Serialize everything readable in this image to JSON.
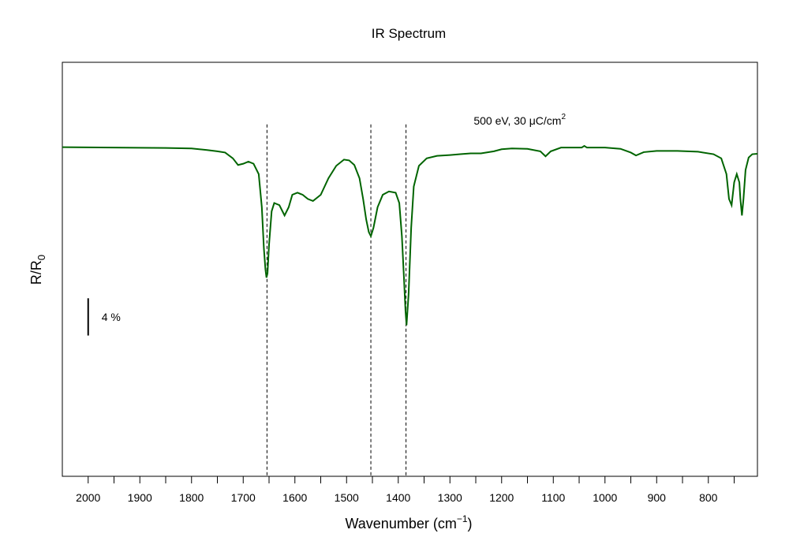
{
  "chart_data": {
    "type": "line",
    "title": "IR Spectrum",
    "xlabel": "Wavenumber  (cm",
    "xlabel_sup": "−1",
    "xlabel_close": ")",
    "ylabel_main": "R/R",
    "ylabel_sub": "0",
    "xlim": [
      2050,
      705
    ],
    "ylim": [
      0,
      100
    ],
    "x_ticks": [
      2000,
      1950,
      1900,
      1850,
      1800,
      1750,
      1700,
      1650,
      1600,
      1550,
      1500,
      1450,
      1400,
      1350,
      1300,
      1250,
      1200,
      1150,
      1100,
      1050,
      1000,
      950,
      900,
      850,
      800,
      750
    ],
    "x_tick_labels": [
      "2000",
      "1900",
      "1800",
      "1700",
      "1600",
      "1500",
      "1400",
      "1300",
      "1200",
      "1100",
      "1000",
      "900",
      "800"
    ],
    "grid": false,
    "line_color": "#006400",
    "reference_lines": [
      1654,
      1453,
      1385
    ],
    "reference_line_top": 85,
    "annotation": {
      "text_main": "500 eV,  30 ",
      "text_mu": "μ",
      "text_unit": "C/cm",
      "text_sup": "2",
      "x": 1165,
      "y": 85
    },
    "scale_bar": {
      "label": "4 %",
      "x": 2000,
      "y_top": 43,
      "y_bottom": 34
    },
    "series": [
      {
        "x": [
          2050,
          1950,
          1850,
          1800,
          1770,
          1750,
          1735,
          1720,
          1710,
          1700,
          1690,
          1680,
          1670,
          1664,
          1660,
          1657,
          1655,
          1653,
          1650,
          1645,
          1640,
          1630,
          1620,
          1612,
          1605,
          1595,
          1585,
          1575,
          1565,
          1550,
          1535,
          1520,
          1505,
          1495,
          1485,
          1475,
          1468,
          1462,
          1457,
          1453,
          1448,
          1440,
          1430,
          1418,
          1405,
          1398,
          1393,
          1389,
          1386,
          1384,
          1380,
          1375,
          1370,
          1360,
          1345,
          1325,
          1300,
          1280,
          1260,
          1240,
          1215,
          1200,
          1180,
          1150,
          1125,
          1115,
          1105,
          1085,
          1060,
          1045,
          1040,
          1035,
          1000,
          970,
          950,
          940,
          925,
          900,
          860,
          820,
          790,
          775,
          765,
          760,
          755,
          750,
          745,
          740,
          738,
          735,
          732,
          728,
          722,
          715,
          705
        ],
        "y": [
          79.5,
          79.4,
          79.3,
          79.2,
          78.8,
          78.5,
          78.2,
          76.8,
          75.2,
          75.5,
          76.0,
          75.5,
          73.0,
          65.0,
          55.0,
          50.0,
          48.0,
          49.0,
          56.0,
          64.0,
          66.0,
          65.5,
          63.0,
          65.0,
          68.0,
          68.5,
          68.0,
          67.0,
          66.5,
          68.0,
          72.0,
          75.0,
          76.5,
          76.3,
          75.2,
          72.0,
          67.0,
          62.0,
          59.0,
          58.0,
          60.0,
          65.0,
          68.0,
          68.8,
          68.5,
          66.0,
          58.0,
          48.0,
          40.0,
          36.5,
          44.0,
          60.0,
          70.0,
          75.0,
          76.8,
          77.4,
          77.6,
          77.8,
          78.0,
          78.0,
          78.5,
          79.0,
          79.2,
          79.1,
          78.5,
          77.3,
          78.5,
          79.4,
          79.4,
          79.4,
          79.8,
          79.4,
          79.4,
          79.1,
          78.2,
          77.5,
          78.3,
          78.6,
          78.6,
          78.4,
          77.8,
          76.8,
          73.0,
          67.0,
          65.5,
          71.0,
          73.0,
          71.0,
          67.0,
          63.0,
          67.0,
          74.0,
          77.0,
          77.8,
          77.9
        ]
      }
    ]
  }
}
